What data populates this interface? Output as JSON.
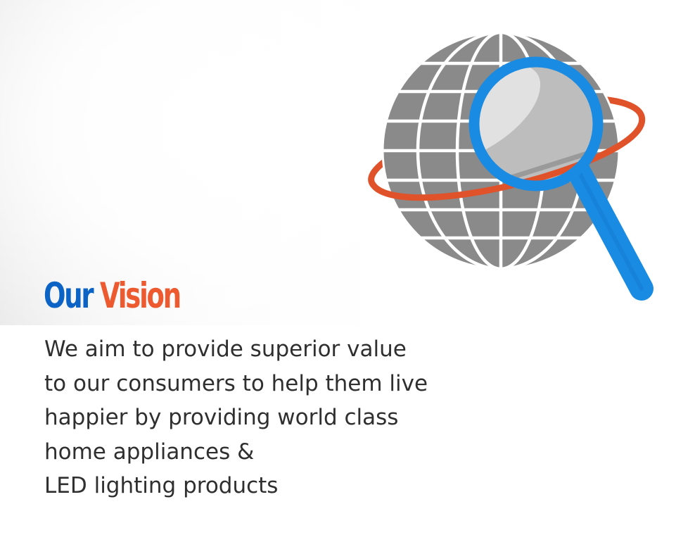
{
  "heading": {
    "word1": "Our",
    "word2": "Vision"
  },
  "body_lines": [
    "We aim to provide superior value",
    "to our consumers to help them live",
    "happier by providing world class",
    "home appliances &",
    "LED lighting products"
  ],
  "colors": {
    "heading_blue": "#0b63c5",
    "heading_orange": "#ee5a2f",
    "globe_gray": "#8a8a8a",
    "orbit_orange": "#e0522a",
    "magnifier_blue": "#1a8be3",
    "body_text": "#2f2f2f"
  },
  "illustration": {
    "icon": "globe-magnifier-icon"
  }
}
